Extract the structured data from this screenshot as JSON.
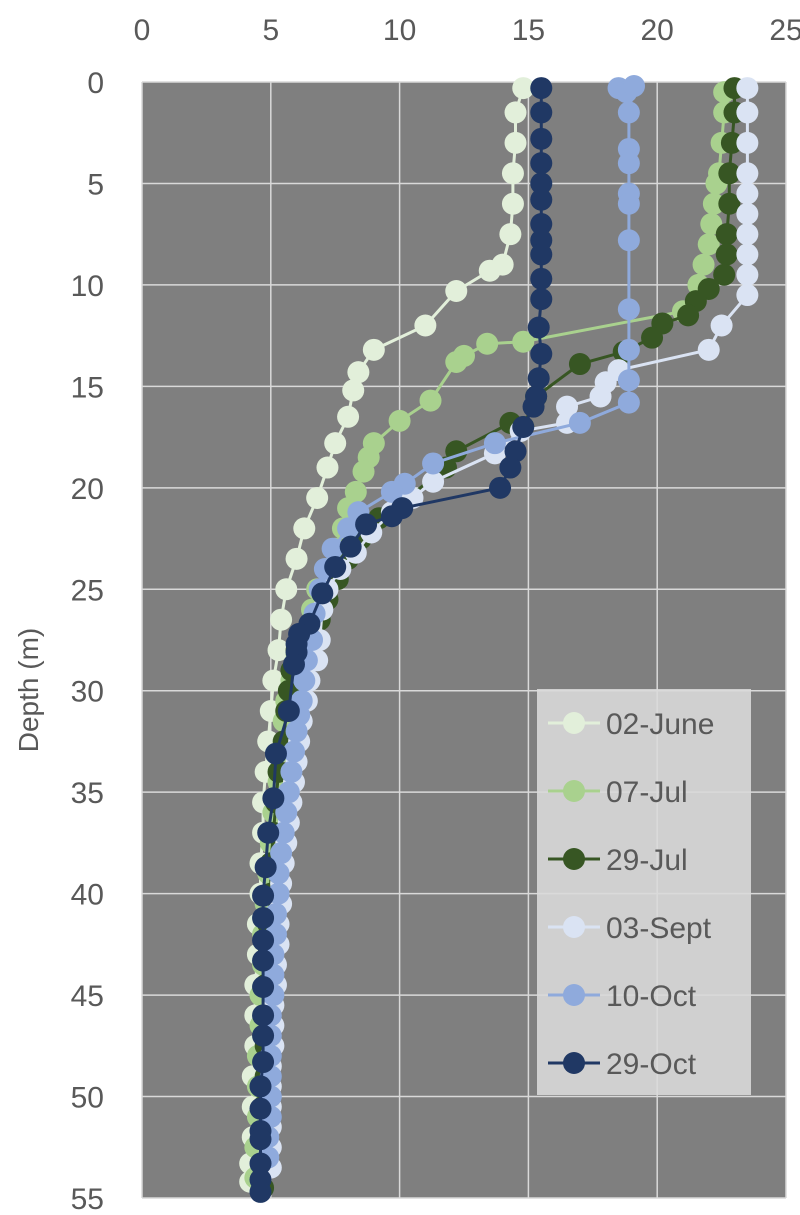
{
  "chart_data": {
    "type": "scatter",
    "title": "",
    "xlabel": "",
    "ylabel": "Depth (m)",
    "xlim": [
      0,
      25
    ],
    "ylim": [
      0,
      55
    ],
    "x_ticks": [
      "0",
      "5",
      "10",
      "15",
      "20",
      "25"
    ],
    "y_ticks": [
      "0",
      "5",
      "10",
      "15",
      "20",
      "25",
      "30",
      "35",
      "40",
      "45",
      "50",
      "55"
    ],
    "x_axis_position": "top",
    "y_axis_inverted": true,
    "grid": true,
    "legend_position": "bottom-right",
    "plot_background": "#7f7f7f",
    "series": [
      {
        "name": "02-June",
        "color": "#e2efda",
        "points": [
          [
            14.8,
            0.3
          ],
          [
            14.5,
            1.5
          ],
          [
            14.5,
            3
          ],
          [
            14.4,
            4.5
          ],
          [
            14.4,
            6
          ],
          [
            14.3,
            7.5
          ],
          [
            14,
            9
          ],
          [
            13.5,
            9.3
          ],
          [
            12.2,
            10.3
          ],
          [
            11,
            12
          ],
          [
            9,
            13.2
          ],
          [
            8.4,
            14.3
          ],
          [
            8.2,
            15.2
          ],
          [
            8,
            16.5
          ],
          [
            7.5,
            17.8
          ],
          [
            7.2,
            19
          ],
          [
            6.8,
            20.5
          ],
          [
            6.3,
            22
          ],
          [
            6,
            23.5
          ],
          [
            5.6,
            25
          ],
          [
            5.4,
            26.5
          ],
          [
            5.3,
            28
          ],
          [
            5.1,
            29.5
          ],
          [
            5,
            31
          ],
          [
            4.9,
            32.5
          ],
          [
            4.8,
            34
          ],
          [
            4.7,
            35.5
          ],
          [
            4.7,
            37
          ],
          [
            4.6,
            38.5
          ],
          [
            4.6,
            40
          ],
          [
            4.5,
            41.5
          ],
          [
            4.5,
            43
          ],
          [
            4.4,
            44.5
          ],
          [
            4.4,
            46
          ],
          [
            4.4,
            47.5
          ],
          [
            4.3,
            49
          ],
          [
            4.3,
            50.5
          ],
          [
            4.3,
            52
          ],
          [
            4.2,
            53.3
          ],
          [
            4.2,
            54.2
          ]
        ]
      },
      {
        "name": "07-Jul",
        "color": "#a9d18e",
        "points": [
          [
            22.6,
            0.5
          ],
          [
            22.6,
            1.5
          ],
          [
            22.5,
            3
          ],
          [
            22.4,
            4.5
          ],
          [
            22.3,
            5
          ],
          [
            22.2,
            6
          ],
          [
            22.1,
            7
          ],
          [
            22,
            8
          ],
          [
            21.8,
            9
          ],
          [
            21.6,
            10
          ],
          [
            21,
            11.3
          ],
          [
            14.8,
            12.8
          ],
          [
            13.4,
            12.9
          ],
          [
            12.5,
            13.5
          ],
          [
            12.2,
            13.8
          ],
          [
            11.2,
            15.7
          ],
          [
            10,
            16.7
          ],
          [
            9,
            17.8
          ],
          [
            8.8,
            18.5
          ],
          [
            8.6,
            19.2
          ],
          [
            8.3,
            20.2
          ],
          [
            8,
            21
          ],
          [
            7.8,
            22
          ],
          [
            7.5,
            23
          ],
          [
            7.2,
            24
          ],
          [
            6.8,
            25
          ],
          [
            6.6,
            26
          ],
          [
            6.3,
            27.2
          ],
          [
            6,
            28.2
          ],
          [
            5.8,
            29.5
          ],
          [
            5.6,
            30.5
          ],
          [
            5.5,
            31.5
          ],
          [
            5.4,
            33
          ],
          [
            5.3,
            34.5
          ],
          [
            5.1,
            36
          ],
          [
            5,
            37.5
          ],
          [
            4.9,
            39
          ],
          [
            4.8,
            40.5
          ],
          [
            4.7,
            42
          ],
          [
            4.7,
            43.5
          ],
          [
            4.6,
            45
          ],
          [
            4.6,
            46.5
          ],
          [
            4.5,
            48
          ],
          [
            4.5,
            49.5
          ],
          [
            4.5,
            51
          ],
          [
            4.4,
            52.5
          ],
          [
            4.4,
            54
          ]
        ]
      },
      {
        "name": "29-Jul",
        "color": "#375623",
        "points": [
          [
            23,
            0.3
          ],
          [
            23,
            1.5
          ],
          [
            22.9,
            3
          ],
          [
            22.8,
            4.5
          ],
          [
            22.8,
            6
          ],
          [
            22.7,
            7.5
          ],
          [
            22.7,
            8.5
          ],
          [
            22.6,
            9.5
          ],
          [
            22,
            10.2
          ],
          [
            21.5,
            10.8
          ],
          [
            21.2,
            11.5
          ],
          [
            20.2,
            11.9
          ],
          [
            19.8,
            12.6
          ],
          [
            18.7,
            13.3
          ],
          [
            17,
            13.9
          ],
          [
            15.3,
            15.5
          ],
          [
            14.8,
            17
          ],
          [
            14.3,
            16.8
          ],
          [
            12.2,
            18.2
          ],
          [
            11.8,
            19
          ],
          [
            10.3,
            20.5
          ],
          [
            9.2,
            21.5
          ],
          [
            8.5,
            22.5
          ],
          [
            8,
            23.5
          ],
          [
            7.6,
            24.5
          ],
          [
            7.2,
            25.5
          ],
          [
            6.9,
            26.5
          ],
          [
            6.2,
            27.2
          ],
          [
            6,
            28
          ],
          [
            5.8,
            29
          ],
          [
            5.7,
            30
          ],
          [
            5.6,
            31
          ],
          [
            5.5,
            32.5
          ],
          [
            5.3,
            34
          ],
          [
            5.2,
            35.5
          ],
          [
            5.1,
            37
          ],
          [
            5,
            38.5
          ],
          [
            5,
            40
          ],
          [
            4.9,
            41.5
          ],
          [
            4.9,
            43
          ],
          [
            4.8,
            44.5
          ],
          [
            4.8,
            46
          ],
          [
            4.8,
            47.5
          ],
          [
            4.8,
            49
          ],
          [
            4.7,
            50.5
          ],
          [
            4.7,
            52
          ],
          [
            4.7,
            53.5
          ],
          [
            4.7,
            54.5
          ]
        ]
      },
      {
        "name": "03-Sept",
        "color": "#dae3f3",
        "points": [
          [
            23.5,
            0.3
          ],
          [
            23.5,
            1.5
          ],
          [
            23.5,
            3
          ],
          [
            23.5,
            4.5
          ],
          [
            23.5,
            5.5
          ],
          [
            23.5,
            6.5
          ],
          [
            23.5,
            7.5
          ],
          [
            23.5,
            8.5
          ],
          [
            23.5,
            9.5
          ],
          [
            23.5,
            10.5
          ],
          [
            22.5,
            12
          ],
          [
            22,
            13.2
          ],
          [
            18.5,
            14.2
          ],
          [
            18,
            14.8
          ],
          [
            17.8,
            15.5
          ],
          [
            16.5,
            16
          ],
          [
            16.5,
            16.8
          ],
          [
            14.7,
            17.2
          ],
          [
            13.7,
            18.3
          ],
          [
            11.3,
            19.7
          ],
          [
            10.5,
            20.5
          ],
          [
            9.7,
            21.2
          ],
          [
            8.9,
            22.2
          ],
          [
            8.3,
            23.2
          ],
          [
            7.7,
            24
          ],
          [
            7.2,
            25
          ],
          [
            7,
            26
          ],
          [
            6.9,
            27.5
          ],
          [
            6.8,
            28.5
          ],
          [
            6.5,
            29.5
          ],
          [
            6.4,
            30.5
          ],
          [
            6.2,
            31.5
          ],
          [
            6.1,
            32.5
          ],
          [
            6,
            33.5
          ],
          [
            5.9,
            34.5
          ],
          [
            5.8,
            35.5
          ],
          [
            5.7,
            36.5
          ],
          [
            5.6,
            37.5
          ],
          [
            5.5,
            38.5
          ],
          [
            5.4,
            39.5
          ],
          [
            5.4,
            40.5
          ],
          [
            5.3,
            41.5
          ],
          [
            5.3,
            42.5
          ],
          [
            5.2,
            43.5
          ],
          [
            5.2,
            44.5
          ],
          [
            5.1,
            45.5
          ],
          [
            5.1,
            46.5
          ],
          [
            5.1,
            47.5
          ],
          [
            5,
            48.5
          ],
          [
            5,
            49.5
          ],
          [
            5,
            50.5
          ],
          [
            5,
            51.5
          ],
          [
            5,
            52.5
          ],
          [
            5,
            53.5
          ]
        ]
      },
      {
        "name": "10-Oct",
        "color": "#8faadc",
        "points": [
          [
            18.5,
            0.3
          ],
          [
            18.8,
            0.5
          ],
          [
            19.1,
            0.2
          ],
          [
            18.9,
            1.5
          ],
          [
            18.9,
            3.3
          ],
          [
            18.9,
            4
          ],
          [
            18.9,
            5.5
          ],
          [
            18.9,
            6
          ],
          [
            18.9,
            7.8
          ],
          [
            18.9,
            11.2
          ],
          [
            18.9,
            13.2
          ],
          [
            18.9,
            14.7
          ],
          [
            18.9,
            15.8
          ],
          [
            17,
            16.8
          ],
          [
            13.7,
            17.8
          ],
          [
            11.3,
            18.8
          ],
          [
            10.2,
            19.8
          ],
          [
            9.7,
            20.2
          ],
          [
            8.4,
            21.2
          ],
          [
            8,
            22
          ],
          [
            7.4,
            23
          ],
          [
            7.1,
            24
          ],
          [
            6.9,
            25
          ],
          [
            6.7,
            26.2
          ],
          [
            6.6,
            27.5
          ],
          [
            6.4,
            28.5
          ],
          [
            6.3,
            29.5
          ],
          [
            6.2,
            30.5
          ],
          [
            6.1,
            31.2
          ],
          [
            6,
            32
          ],
          [
            5.9,
            33
          ],
          [
            5.8,
            34
          ],
          [
            5.7,
            35
          ],
          [
            5.6,
            36
          ],
          [
            5.5,
            37
          ],
          [
            5.4,
            38
          ],
          [
            5.3,
            39
          ],
          [
            5.3,
            40
          ],
          [
            5.2,
            41
          ],
          [
            5.2,
            42
          ],
          [
            5.1,
            43
          ],
          [
            5.1,
            44
          ],
          [
            5.1,
            45
          ],
          [
            5,
            46
          ],
          [
            5,
            47
          ],
          [
            5,
            48
          ],
          [
            5,
            49
          ],
          [
            5,
            50
          ],
          [
            5,
            51
          ],
          [
            4.9,
            52
          ],
          [
            4.9,
            53
          ]
        ]
      },
      {
        "name": "29-Oct",
        "color": "#203864",
        "points": [
          [
            15.5,
            0.3
          ],
          [
            15.5,
            1.5
          ],
          [
            15.5,
            2.8
          ],
          [
            15.5,
            4
          ],
          [
            15.5,
            5
          ],
          [
            15.5,
            5.8
          ],
          [
            15.5,
            7
          ],
          [
            15.5,
            7.8
          ],
          [
            15.5,
            8.5
          ],
          [
            15.5,
            9.7
          ],
          [
            15.5,
            10.7
          ],
          [
            15.4,
            12.1
          ],
          [
            15.5,
            13.4
          ],
          [
            15.4,
            14.6
          ],
          [
            15.3,
            15.5
          ],
          [
            15.2,
            16
          ],
          [
            14.8,
            17
          ],
          [
            14.5,
            18.2
          ],
          [
            14.3,
            19
          ],
          [
            13.9,
            20
          ],
          [
            10.1,
            21
          ],
          [
            9.7,
            21.4
          ],
          [
            8.7,
            21.8
          ],
          [
            8.1,
            22.9
          ],
          [
            7.5,
            23.9
          ],
          [
            7,
            25.2
          ],
          [
            6.5,
            26.7
          ],
          [
            6.1,
            27.2
          ],
          [
            6,
            27.7
          ],
          [
            6,
            28.1
          ],
          [
            5.9,
            28.7
          ],
          [
            5.7,
            31
          ],
          [
            5.2,
            33.1
          ],
          [
            5.1,
            35.3
          ],
          [
            4.9,
            37
          ],
          [
            4.8,
            38.7
          ],
          [
            4.7,
            40.1
          ],
          [
            4.7,
            41.2
          ],
          [
            4.7,
            42.3
          ],
          [
            4.7,
            43.3
          ],
          [
            4.7,
            44.6
          ],
          [
            4.7,
            46
          ],
          [
            4.7,
            47
          ],
          [
            4.7,
            48.3
          ],
          [
            4.6,
            49.5
          ],
          [
            4.6,
            50.6
          ],
          [
            4.6,
            51.7
          ],
          [
            4.6,
            52.1
          ],
          [
            4.6,
            53.3
          ],
          [
            4.6,
            54.1
          ],
          [
            4.6,
            54.7
          ]
        ]
      }
    ]
  }
}
